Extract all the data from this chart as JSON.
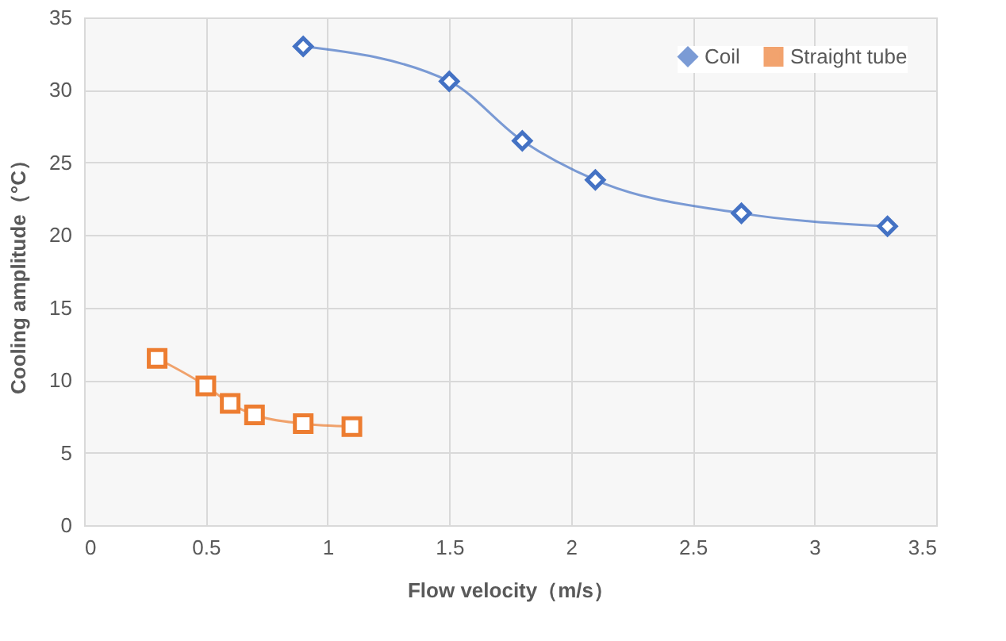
{
  "chart_data": {
    "type": "line",
    "xlabel": "Flow velocity（m/s）",
    "ylabel": "Cooling amplitude（°C）",
    "series": [
      {
        "name": "Coil",
        "color": "#4472c4",
        "marker": "diamond",
        "x": [
          0.9,
          1.5,
          1.8,
          2.1,
          2.7,
          3.3
        ],
        "values": [
          33.0,
          30.6,
          26.5,
          23.8,
          21.5,
          20.6
        ]
      },
      {
        "name": "Straight tube",
        "color": "#ed7d31",
        "marker": "square",
        "x": [
          0.3,
          0.5,
          0.6,
          0.7,
          0.9,
          1.1
        ],
        "values": [
          11.5,
          9.6,
          8.4,
          7.6,
          7.0,
          6.8
        ]
      }
    ],
    "xlim": [
      0,
      3.5
    ],
    "xticks": [
      0,
      0.5,
      1,
      1.5,
      2,
      2.5,
      3,
      3.5
    ],
    "ylim": [
      0,
      35
    ],
    "yticks": [
      0,
      5,
      10,
      15,
      20,
      25,
      30,
      35
    ],
    "grid": true,
    "legend": "top right",
    "line_style": "solid"
  }
}
